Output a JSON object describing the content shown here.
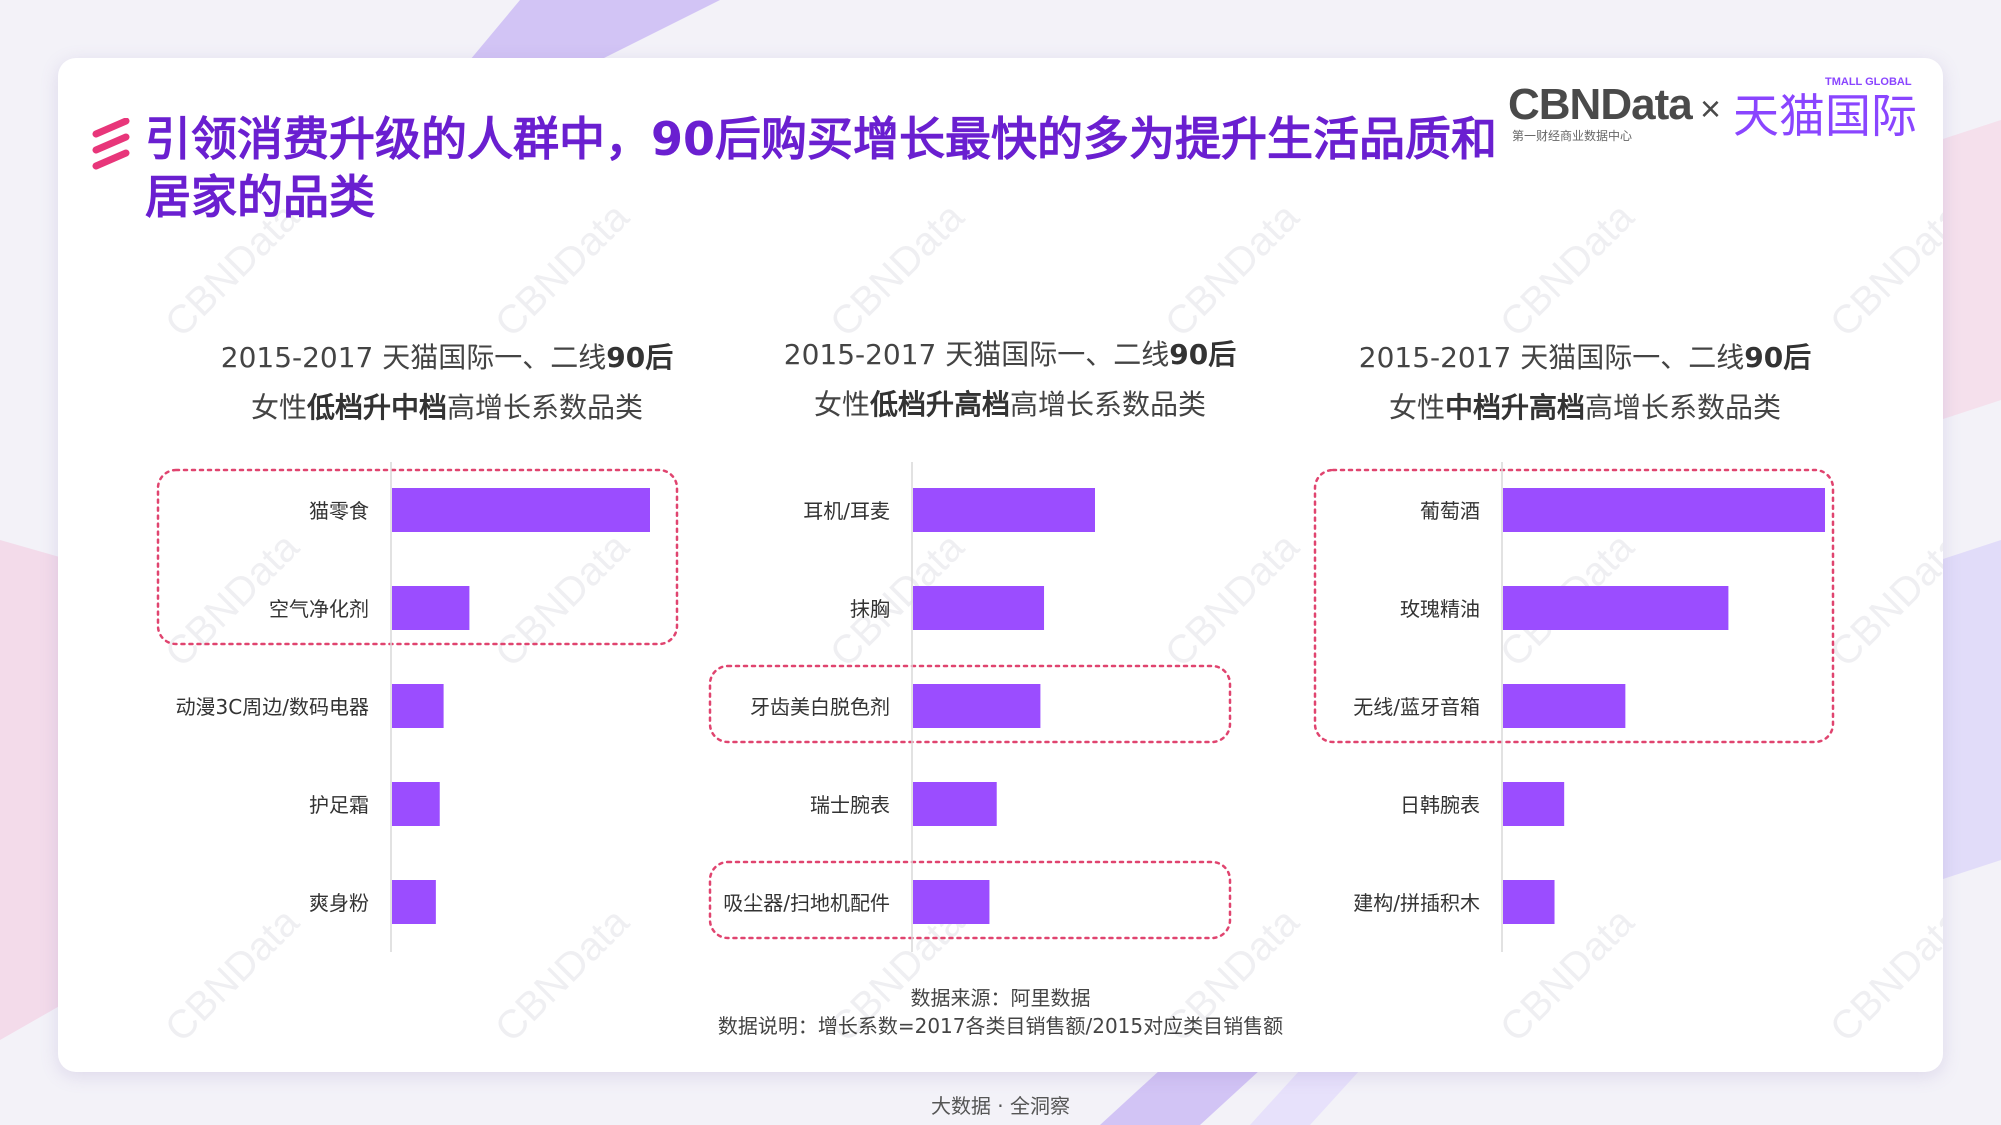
{
  "header": {
    "title": "引领消费升级的人群中，90后购买增长最快的多为提升生活品质和居家的品类",
    "title_line1": "引领消费升级的人群中，90后购买增长最快的多为提升生活品质和",
    "title_line2": "居家的品类"
  },
  "logo": {
    "brand": "CBNData",
    "sub": "第一财经商业数据中心",
    "separator": "×",
    "partner": "天猫国际",
    "partner_en": "TMALL GLOBAL"
  },
  "watermark_text": "CBNData",
  "colors": {
    "accent": "#6a1fd0",
    "bar": "#9b4dff",
    "highlight_box": "#e0446f",
    "icon": "#e8367a"
  },
  "chart_data": [
    {
      "type": "bar",
      "orientation": "horizontal",
      "title_line1_prefix": "2015-2017 天猫国际一、二线",
      "title_line1_bold": "90后",
      "title_line2_prefix": "女性",
      "title_line2_bold": "低档升中档",
      "title_line2_suffix": "高增长系数品类",
      "categories": [
        "猫零食",
        "空气净化剂",
        "动漫3C周边/数码电器",
        "护足霜",
        "爽身粉"
      ],
      "values": [
        100,
        30,
        20,
        18.5,
        17
      ],
      "highlighted": [
        0,
        1
      ]
    },
    {
      "type": "bar",
      "orientation": "horizontal",
      "title_line1_prefix": "2015-2017 天猫国际一、二线",
      "title_line1_bold": "90后",
      "title_line2_prefix": "女性",
      "title_line2_bold": "低档升高档",
      "title_line2_suffix": "高增长系数品类",
      "categories": [
        "耳机/耳麦",
        "抹胸",
        "牙齿美白脱色剂",
        "瑞士腕表",
        "吸尘器/扫地机配件"
      ],
      "values": [
        100,
        72,
        70,
        46,
        42
      ],
      "highlighted": [
        2,
        4
      ]
    },
    {
      "type": "bar",
      "orientation": "horizontal",
      "title_line1_prefix": "2015-2017 天猫国际一、二线",
      "title_line1_bold": "90后",
      "title_line2_prefix": "女性",
      "title_line2_bold": "中档升高档",
      "title_line2_suffix": "高增长系数品类",
      "categories": [
        "葡萄酒",
        "玫瑰精油",
        "无线/蓝牙音箱",
        "日韩腕表",
        "建构/拼插积木"
      ],
      "values": [
        100,
        70,
        38,
        19,
        16
      ],
      "highlighted": [
        0,
        1,
        2
      ]
    }
  ],
  "footnote": {
    "source": "数据来源：阿里数据",
    "note": "数据说明：增长系数=2017各类目销售额/2015对应类目销售额"
  },
  "bottom_tag": "大数据 · 全洞察"
}
